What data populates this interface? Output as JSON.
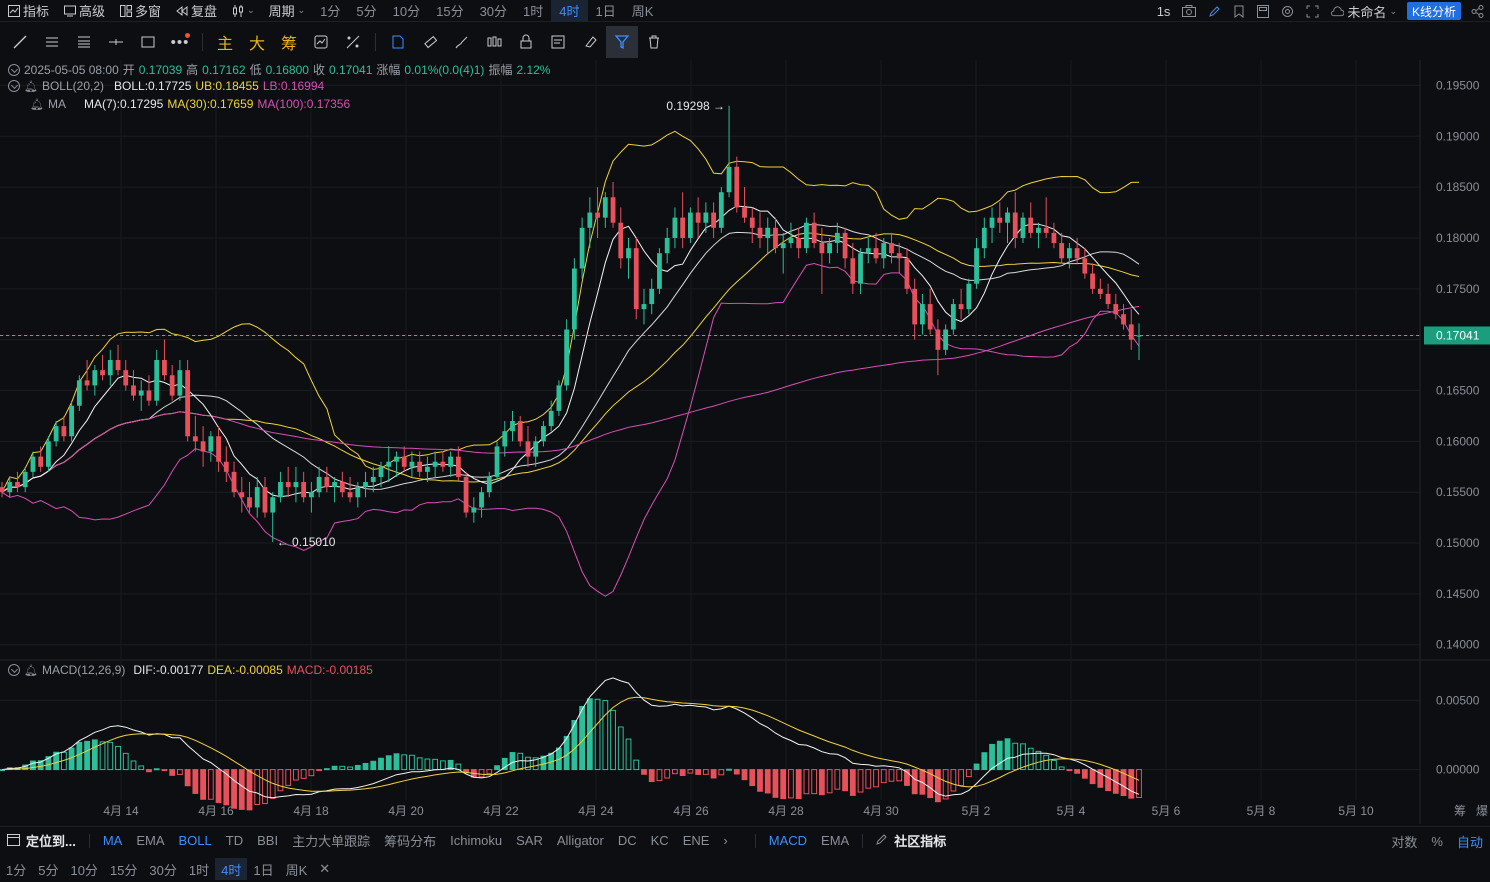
{
  "topbar": {
    "indicator_label": "指标",
    "advanced_label": "高级",
    "multiwindow_label": "多窗",
    "replay_label": "复盘",
    "period_label": "周期",
    "periods": [
      "1分",
      "5分",
      "10分",
      "15分",
      "30分",
      "1时",
      "4时",
      "1日",
      "周K"
    ],
    "active_period": "4时",
    "refresh_label": "1s",
    "layout_name": "未命名",
    "kline_analysis_label": "K线分析"
  },
  "toolbar": {
    "main_label": "主",
    "big_label": "大",
    "chip_label": "筹"
  },
  "legend": {
    "ohlc": {
      "datetime": "2025-05-05 08:00",
      "open_label": "开",
      "open": "0.17039",
      "high_label": "高",
      "high": "0.17162",
      "low_label": "低",
      "low": "0.16800",
      "close_label": "收",
      "close": "0.17041",
      "change_label": "涨幅",
      "change": "0.01%(0.0(4)1)",
      "amplitude_label": "振幅",
      "amplitude": "2.12%"
    },
    "boll": {
      "name": "BOLL(20,2)",
      "mid": "BOLL:0.17725",
      "ub": "UB:0.18455",
      "lb": "LB:0.16994"
    },
    "ma": {
      "name": "MA",
      "ma7": "MA(7):0.17295",
      "ma30": "MA(30):0.17659",
      "ma100": "MA(100):0.17356"
    },
    "macd": {
      "name": "MACD(12,26,9)",
      "dif": "DIF:-0.00177",
      "dea": "DEA:-0.00085",
      "macd": "MACD:-0.00185"
    }
  },
  "price_axis": [
    "0.19500",
    "0.19000",
    "0.18500",
    "0.18000",
    "0.17500",
    "0.17000",
    "0.16500",
    "0.16000",
    "0.15500",
    "0.15000",
    "0.14500",
    "0.14000"
  ],
  "current_price": "0.17041",
  "macd_axis": [
    "0.00500",
    "0.00000"
  ],
  "annotations": {
    "high_marker": "0.19298",
    "low_marker": "0.15010"
  },
  "date_axis": [
    "4月 14",
    "4月 16",
    "4月 18",
    "4月 20",
    "4月 22",
    "4月 24",
    "4月 26",
    "4月 28",
    "4月 30",
    "5月 2",
    "5月 4",
    "5月 6",
    "5月 8",
    "5月 10"
  ],
  "axis_corner_labels": [
    "筹",
    "爆"
  ],
  "colors": {
    "up": "#2bbf9a",
    "down": "#e8505b",
    "boll_band": "#f0d23c",
    "boll_mid": "#d8d8d8",
    "ma7": "#f3f3f3",
    "ma30": "#f0d23c",
    "ma100": "#d74fb4",
    "accent": "#3d8eff"
  },
  "bottombar": {
    "locate_label": "定位到...",
    "main_indicators": [
      "MA",
      "EMA",
      "BOLL",
      "TD",
      "BBI",
      "主力大单跟踪",
      "筹码分布",
      "Ichimoku",
      "SAR",
      "Alligator",
      "DC",
      "KC",
      "ENE"
    ],
    "active_main": [
      "MA",
      "BOLL"
    ],
    "sub_indicators": [
      "MACD",
      "EMA"
    ],
    "active_sub": "MACD",
    "community_label": "社区指标",
    "log_label": "对数",
    "percent_label": "%",
    "auto_label": "自动"
  },
  "periodbar": {
    "periods": [
      "1分",
      "5分",
      "10分",
      "15分",
      "30分",
      "1时",
      "4时",
      "1日",
      "周K"
    ],
    "active": "4时"
  },
  "chart_data": {
    "type": "candlestick",
    "timeframe": "4时",
    "candles": [
      [
        0.1555,
        0.156,
        0.1545,
        0.155
      ],
      [
        0.155,
        0.1565,
        0.1545,
        0.156
      ],
      [
        0.156,
        0.157,
        0.155,
        0.1555
      ],
      [
        0.1555,
        0.1575,
        0.155,
        0.157
      ],
      [
        0.157,
        0.159,
        0.1565,
        0.1585
      ],
      [
        0.1585,
        0.1595,
        0.157,
        0.1575
      ],
      [
        0.1575,
        0.1605,
        0.157,
        0.16
      ],
      [
        0.16,
        0.162,
        0.1595,
        0.1615
      ],
      [
        0.1615,
        0.1625,
        0.16,
        0.1605
      ],
      [
        0.1605,
        0.164,
        0.16,
        0.1635
      ],
      [
        0.1635,
        0.1665,
        0.163,
        0.166
      ],
      [
        0.166,
        0.168,
        0.165,
        0.1655
      ],
      [
        0.1655,
        0.1675,
        0.1645,
        0.167
      ],
      [
        0.167,
        0.1685,
        0.166,
        0.1665
      ],
      [
        0.1665,
        0.169,
        0.1655,
        0.168
      ],
      [
        0.168,
        0.1695,
        0.1665,
        0.167
      ],
      [
        0.167,
        0.168,
        0.165,
        0.1655
      ],
      [
        0.1655,
        0.167,
        0.164,
        0.1645
      ],
      [
        0.1645,
        0.166,
        0.163,
        0.165
      ],
      [
        0.165,
        0.1665,
        0.1635,
        0.164
      ],
      [
        0.164,
        0.169,
        0.1635,
        0.168
      ],
      [
        0.168,
        0.17,
        0.166,
        0.1665
      ],
      [
        0.1665,
        0.1675,
        0.164,
        0.1645
      ],
      [
        0.1645,
        0.168,
        0.164,
        0.167
      ],
      [
        0.167,
        0.168,
        0.16,
        0.1605
      ],
      [
        0.1605,
        0.1625,
        0.159,
        0.16
      ],
      [
        0.16,
        0.1615,
        0.1575,
        0.159
      ],
      [
        0.159,
        0.161,
        0.158,
        0.1605
      ],
      [
        0.1605,
        0.1615,
        0.157,
        0.158
      ],
      [
        0.158,
        0.1595,
        0.156,
        0.157
      ],
      [
        0.157,
        0.158,
        0.1545,
        0.155
      ],
      [
        0.155,
        0.1565,
        0.153,
        0.1545
      ],
      [
        0.1545,
        0.156,
        0.153,
        0.1535
      ],
      [
        0.1535,
        0.1565,
        0.1525,
        0.1555
      ],
      [
        0.1555,
        0.1565,
        0.1525,
        0.153
      ],
      [
        0.153,
        0.155,
        0.1501,
        0.1545
      ],
      [
        0.1545,
        0.157,
        0.154,
        0.156
      ],
      [
        0.156,
        0.1575,
        0.1545,
        0.1555
      ],
      [
        0.1555,
        0.1575,
        0.154,
        0.156
      ],
      [
        0.156,
        0.157,
        0.154,
        0.1545
      ],
      [
        0.1545,
        0.156,
        0.153,
        0.155
      ],
      [
        0.155,
        0.1575,
        0.1545,
        0.1565
      ],
      [
        0.1565,
        0.1575,
        0.155,
        0.1555
      ],
      [
        0.1555,
        0.1565,
        0.154,
        0.156
      ],
      [
        0.156,
        0.157,
        0.1545,
        0.155
      ],
      [
        0.155,
        0.1565,
        0.154,
        0.1545
      ],
      [
        0.1545,
        0.156,
        0.1535,
        0.1555
      ],
      [
        0.1555,
        0.157,
        0.1545,
        0.156
      ],
      [
        0.156,
        0.1575,
        0.155,
        0.1565
      ],
      [
        0.1565,
        0.158,
        0.1555,
        0.1575
      ],
      [
        0.1575,
        0.1595,
        0.156,
        0.158
      ],
      [
        0.158,
        0.159,
        0.1565,
        0.1585
      ],
      [
        0.1585,
        0.1595,
        0.157,
        0.1575
      ],
      [
        0.1575,
        0.159,
        0.1565,
        0.158
      ],
      [
        0.158,
        0.159,
        0.1565,
        0.157
      ],
      [
        0.157,
        0.1585,
        0.156,
        0.1575
      ],
      [
        0.1575,
        0.159,
        0.1565,
        0.158
      ],
      [
        0.158,
        0.159,
        0.157,
        0.1575
      ],
      [
        0.1575,
        0.159,
        0.1565,
        0.1585
      ],
      [
        0.1585,
        0.1595,
        0.156,
        0.1565
      ],
      [
        0.1565,
        0.157,
        0.1525,
        0.153
      ],
      [
        0.153,
        0.1545,
        0.152,
        0.1535
      ],
      [
        0.1535,
        0.1555,
        0.1525,
        0.155
      ],
      [
        0.155,
        0.157,
        0.1545,
        0.1565
      ],
      [
        0.1565,
        0.16,
        0.156,
        0.1595
      ],
      [
        0.1595,
        0.162,
        0.1585,
        0.161
      ],
      [
        0.161,
        0.163,
        0.16,
        0.162
      ],
      [
        0.162,
        0.1625,
        0.1595,
        0.16
      ],
      [
        0.16,
        0.1615,
        0.1575,
        0.1585
      ],
      [
        0.1585,
        0.1605,
        0.1575,
        0.16
      ],
      [
        0.16,
        0.162,
        0.1595,
        0.1615
      ],
      [
        0.1615,
        0.164,
        0.161,
        0.163
      ],
      [
        0.163,
        0.166,
        0.1625,
        0.1655
      ],
      [
        0.1655,
        0.172,
        0.165,
        0.171
      ],
      [
        0.171,
        0.178,
        0.17,
        0.177
      ],
      [
        0.177,
        0.182,
        0.176,
        0.181
      ],
      [
        0.181,
        0.184,
        0.179,
        0.1825
      ],
      [
        0.1825,
        0.185,
        0.18,
        0.182
      ],
      [
        0.182,
        0.1845,
        0.181,
        0.184
      ],
      [
        0.184,
        0.1855,
        0.181,
        0.1815
      ],
      [
        0.1815,
        0.183,
        0.177,
        0.178
      ],
      [
        0.178,
        0.18,
        0.176,
        0.179
      ],
      [
        0.179,
        0.18,
        0.172,
        0.173
      ],
      [
        0.173,
        0.175,
        0.1715,
        0.1735
      ],
      [
        0.1735,
        0.176,
        0.1725,
        0.175
      ],
      [
        0.175,
        0.179,
        0.1745,
        0.1785
      ],
      [
        0.1785,
        0.181,
        0.1775,
        0.18
      ],
      [
        0.18,
        0.183,
        0.179,
        0.182
      ],
      [
        0.182,
        0.1845,
        0.179,
        0.18
      ],
      [
        0.18,
        0.183,
        0.1795,
        0.1825
      ],
      [
        0.1825,
        0.184,
        0.18,
        0.1815
      ],
      [
        0.1815,
        0.1835,
        0.1805,
        0.1825
      ],
      [
        0.1825,
        0.1835,
        0.18,
        0.181
      ],
      [
        0.181,
        0.185,
        0.1805,
        0.1845
      ],
      [
        0.1845,
        0.193,
        0.184,
        0.187
      ],
      [
        0.187,
        0.188,
        0.1825,
        0.183
      ],
      [
        0.183,
        0.185,
        0.1815,
        0.182
      ],
      [
        0.182,
        0.183,
        0.1795,
        0.181
      ],
      [
        0.181,
        0.1825,
        0.179,
        0.18
      ],
      [
        0.18,
        0.182,
        0.1785,
        0.181
      ],
      [
        0.181,
        0.182,
        0.1785,
        0.179
      ],
      [
        0.179,
        0.1805,
        0.1765,
        0.1795
      ],
      [
        0.1795,
        0.1815,
        0.179,
        0.18
      ],
      [
        0.18,
        0.181,
        0.178,
        0.179
      ],
      [
        0.179,
        0.182,
        0.1785,
        0.1815
      ],
      [
        0.1815,
        0.1825,
        0.179,
        0.1795
      ],
      [
        0.1795,
        0.181,
        0.1745,
        0.1785
      ],
      [
        0.1785,
        0.18,
        0.1775,
        0.1795
      ],
      [
        0.1795,
        0.1815,
        0.1785,
        0.1805
      ],
      [
        0.1805,
        0.181,
        0.177,
        0.178
      ],
      [
        0.178,
        0.1795,
        0.1745,
        0.1755
      ],
      [
        0.1755,
        0.179,
        0.1745,
        0.1785
      ],
      [
        0.1785,
        0.18,
        0.1775,
        0.179
      ],
      [
        0.179,
        0.1805,
        0.1775,
        0.178
      ],
      [
        0.178,
        0.18,
        0.177,
        0.1795
      ],
      [
        0.1795,
        0.1805,
        0.1775,
        0.1785
      ],
      [
        0.1785,
        0.1795,
        0.1765,
        0.178
      ],
      [
        0.178,
        0.179,
        0.1745,
        0.175
      ],
      [
        0.175,
        0.176,
        0.17,
        0.1715
      ],
      [
        0.1715,
        0.1745,
        0.1705,
        0.1735
      ],
      [
        0.1735,
        0.175,
        0.1705,
        0.171
      ],
      [
        0.171,
        0.172,
        0.1665,
        0.169
      ],
      [
        0.169,
        0.1715,
        0.1685,
        0.171
      ],
      [
        0.171,
        0.174,
        0.1705,
        0.1735
      ],
      [
        0.1735,
        0.175,
        0.172,
        0.173
      ],
      [
        0.173,
        0.176,
        0.1725,
        0.1755
      ],
      [
        0.1755,
        0.18,
        0.175,
        0.179
      ],
      [
        0.179,
        0.182,
        0.178,
        0.181
      ],
      [
        0.181,
        0.183,
        0.1795,
        0.182
      ],
      [
        0.182,
        0.1835,
        0.1805,
        0.1815
      ],
      [
        0.1815,
        0.183,
        0.1795,
        0.1825
      ],
      [
        0.1825,
        0.1845,
        0.179,
        0.18
      ],
      [
        0.18,
        0.1825,
        0.1795,
        0.182
      ],
      [
        0.182,
        0.1835,
        0.18,
        0.1805
      ],
      [
        0.1805,
        0.1815,
        0.179,
        0.181
      ],
      [
        0.181,
        0.184,
        0.18,
        0.1805
      ],
      [
        0.1805,
        0.1815,
        0.179,
        0.1795
      ],
      [
        0.1795,
        0.1805,
        0.1775,
        0.178
      ],
      [
        0.178,
        0.1795,
        0.177,
        0.179
      ],
      [
        0.179,
        0.18,
        0.1775,
        0.178
      ],
      [
        0.178,
        0.179,
        0.176,
        0.1765
      ],
      [
        0.1765,
        0.1775,
        0.1745,
        0.175
      ],
      [
        0.175,
        0.176,
        0.174,
        0.1745
      ],
      [
        0.1745,
        0.1755,
        0.173,
        0.1735
      ],
      [
        0.1735,
        0.1745,
        0.172,
        0.1725
      ],
      [
        0.1725,
        0.1735,
        0.171,
        0.1715
      ],
      [
        0.1715,
        0.173,
        0.169,
        0.17
      ],
      [
        0.1704,
        0.1716,
        0.168,
        0.1704
      ]
    ],
    "price_range": [
      0.1385,
      0.1975
    ],
    "high_annotation": 0.19298,
    "low_annotation": 0.1501,
    "macd_range": [
      -0.0022,
      0.0072
    ],
    "overlays": [
      "BOLL(20,2)",
      "MA(7)",
      "MA(30)",
      "MA(100)"
    ],
    "sub_indicator": "MACD(12,26,9)"
  }
}
